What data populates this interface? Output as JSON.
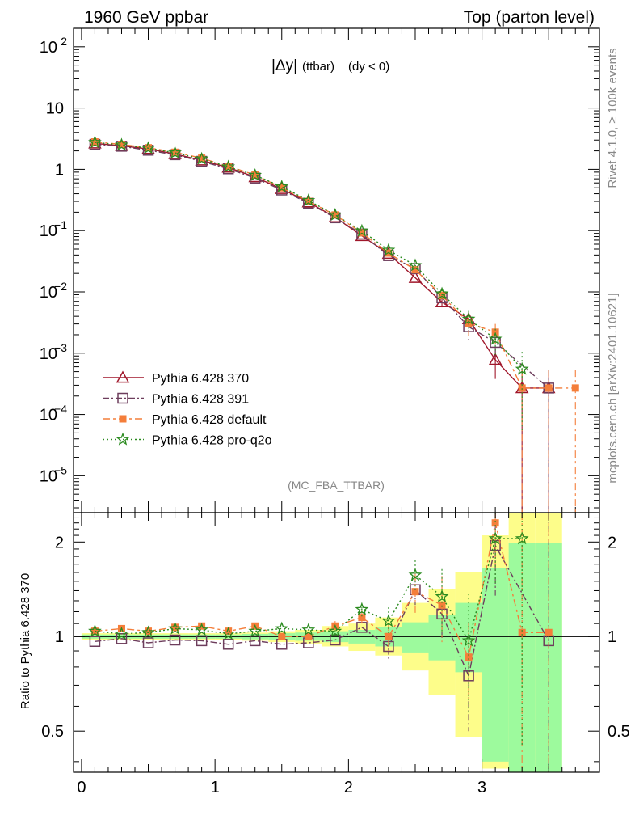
{
  "header": {
    "left": "1960 GeV ppbar",
    "right": "Top (parton level)"
  },
  "plot_label": {
    "var": "|Δy|",
    "sub": "(ttbar)",
    "cond": "(dy < 0)"
  },
  "analysis": "(MC_FBA_TTBAR)",
  "side": {
    "rivet": "Rivet 4.1.0, ≥ 100k events",
    "mcplots": "mcplots.cern.ch [arXiv:2401.10621]"
  },
  "ratio_ylabel": "Ratio to Pythia 6.428 370",
  "colors": {
    "p370": "#a0172b",
    "p391": "#6d3d5c",
    "pdef": "#f47e3a",
    "pq2o": "#2a8a1e",
    "band_inner": "#9dfa9d",
    "band_outer": "#fdfd8a"
  },
  "chart_data": [
    {
      "type": "line",
      "title": "|Δy| (ttbar) (dy < 0)",
      "xlim": [
        -0.06,
        3.88
      ],
      "ylim": [
        2.5e-06,
        200
      ],
      "yscale": "log",
      "yticks": [
        "10^-5",
        "10^-4",
        "10^-3",
        "10^-2",
        "10^-1",
        "1",
        "10",
        "10^2"
      ],
      "legend_position": "lower-left",
      "x": [
        0.1,
        0.3,
        0.5,
        0.7,
        0.9,
        1.1,
        1.3,
        1.5,
        1.7,
        1.9,
        2.1,
        2.3,
        2.5,
        2.7,
        2.9,
        3.1,
        3.3,
        3.5,
        3.7
      ],
      "series": [
        {
          "name": "Pythia 6.428 370",
          "key": "p370",
          "marker": "triangle",
          "values": [
            2.65,
            2.42,
            2.15,
            1.78,
            1.4,
            1.07,
            0.75,
            0.48,
            0.29,
            0.165,
            0.082,
            0.042,
            0.017,
            0.0068,
            0.0036,
            0.00078,
            0.00027,
            0.00027,
            null
          ],
          "err": [
            null,
            null,
            null,
            null,
            null,
            null,
            null,
            null,
            null,
            null,
            null,
            null,
            null,
            0.0012,
            0.001,
            0.0004,
            0.00027,
            0.00027,
            null
          ]
        },
        {
          "name": "Pythia 6.428 391",
          "key": "p391",
          "marker": "square",
          "values": [
            2.55,
            2.38,
            2.05,
            1.73,
            1.35,
            1.02,
            0.72,
            0.46,
            0.28,
            0.162,
            0.088,
            0.039,
            0.024,
            0.008,
            0.0027,
            0.0015,
            null,
            0.00027,
            null
          ],
          "err": [
            null,
            null,
            null,
            null,
            null,
            null,
            null,
            null,
            null,
            null,
            null,
            null,
            null,
            0.0015,
            0.0012,
            0.0006,
            null,
            0.00027,
            null
          ]
        },
        {
          "name": "Pythia 6.428 default",
          "key": "pdef",
          "marker": "fsquare",
          "values": [
            2.8,
            2.55,
            2.25,
            1.9,
            1.52,
            1.12,
            0.81,
            0.5,
            0.3,
            0.18,
            0.092,
            0.043,
            0.023,
            0.0087,
            0.0031,
            0.0022,
            0.00027,
            0.00027,
            0.00027
          ],
          "err": [
            null,
            null,
            null,
            null,
            null,
            null,
            null,
            null,
            null,
            null,
            null,
            null,
            null,
            0.0015,
            0.0012,
            0.0008,
            0.00027,
            0.00027,
            0.00027
          ]
        },
        {
          "name": "Pythia 6.428 pro-q2o",
          "key": "pq2o",
          "marker": "star",
          "values": [
            2.75,
            2.5,
            2.22,
            1.86,
            1.48,
            1.1,
            0.8,
            0.52,
            0.31,
            0.18,
            0.099,
            0.048,
            0.027,
            0.0093,
            0.0036,
            0.0017,
            0.00055,
            null,
            null
          ],
          "err": [
            null,
            null,
            null,
            null,
            null,
            null,
            null,
            null,
            null,
            null,
            null,
            null,
            null,
            0.0016,
            0.0013,
            0.0008,
            0.0005,
            null,
            null
          ]
        }
      ]
    },
    {
      "type": "line",
      "ylabel": "Ratio to Pythia 6.428 370",
      "xlim": [
        -0.06,
        3.88
      ],
      "ylim": [
        0.37,
        2.48
      ],
      "yscale": "log",
      "xticks": [
        0,
        1,
        2,
        3
      ],
      "yticks": [
        0.5,
        1,
        2
      ],
      "reference_line": 1,
      "bands": {
        "edges": [
          0,
          0.2,
          0.4,
          0.6,
          0.8,
          1.0,
          1.2,
          1.4,
          1.6,
          1.8,
          2.0,
          2.2,
          2.4,
          2.6,
          2.8,
          3.0,
          3.2,
          3.4,
          3.6
        ],
        "inner": [
          [
            0.985,
            1.015
          ],
          [
            0.985,
            1.015
          ],
          [
            0.985,
            1.015
          ],
          [
            0.985,
            1.015
          ],
          [
            0.985,
            1.015
          ],
          [
            0.985,
            1.015
          ],
          [
            0.98,
            1.02
          ],
          [
            0.975,
            1.025
          ],
          [
            0.97,
            1.03
          ],
          [
            0.96,
            1.04
          ],
          [
            0.95,
            1.05
          ],
          [
            0.93,
            1.07
          ],
          [
            0.89,
            1.11
          ],
          [
            0.84,
            1.17
          ],
          [
            0.77,
            1.28
          ],
          [
            0.4,
            1.65
          ],
          [
            0.37,
            1.98
          ],
          [
            0.37,
            1.98
          ]
        ],
        "outer": [
          [
            0.975,
            1.025
          ],
          [
            0.975,
            1.025
          ],
          [
            0.975,
            1.025
          ],
          [
            0.975,
            1.025
          ],
          [
            0.975,
            1.025
          ],
          [
            0.975,
            1.025
          ],
          [
            0.97,
            1.03
          ],
          [
            0.96,
            1.04
          ],
          [
            0.95,
            1.05
          ],
          [
            0.93,
            1.08
          ],
          [
            0.9,
            1.1
          ],
          [
            0.87,
            1.15
          ],
          [
            0.78,
            1.28
          ],
          [
            0.65,
            1.42
          ],
          [
            0.48,
            1.6
          ],
          [
            0.38,
            2.1
          ],
          [
            0.37,
            2.48
          ],
          [
            0.37,
            2.48
          ]
        ]
      },
      "x": [
        0.1,
        0.3,
        0.5,
        0.7,
        0.9,
        1.1,
        1.3,
        1.5,
        1.7,
        1.9,
        2.1,
        2.3,
        2.5,
        2.7,
        2.9,
        3.1,
        3.3,
        3.5
      ],
      "series": [
        {
          "name": "Pythia 6.428 391",
          "key": "p391",
          "marker": "square",
          "values": [
            0.965,
            0.985,
            0.955,
            0.975,
            0.97,
            0.945,
            0.97,
            0.945,
            0.955,
            0.975,
            1.07,
            0.93,
            1.41,
            1.18,
            0.75,
            1.95,
            null,
            0.97
          ],
          "err": [
            null,
            null,
            null,
            null,
            null,
            null,
            null,
            null,
            null,
            null,
            null,
            0.08,
            0.15,
            0.2,
            0.25,
            0.6,
            null,
            1.6
          ]
        },
        {
          "name": "Pythia 6.428 default",
          "key": "pdef",
          "marker": "fsquare",
          "values": [
            1.04,
            1.06,
            1.04,
            1.07,
            1.08,
            1.04,
            1.08,
            1.0,
            1.0,
            1.08,
            1.15,
            1.0,
            1.39,
            1.26,
            0.86,
            2.3,
            1.03,
            1.03
          ],
          "err": [
            null,
            null,
            null,
            null,
            null,
            null,
            null,
            null,
            0.03,
            0.04,
            0.06,
            0.1,
            0.2,
            0.3,
            0.25,
            0.6,
            1.6,
            1.6
          ]
        },
        {
          "name": "Pythia 6.428 pro-q2o",
          "key": "pq2o",
          "marker": "star",
          "values": [
            1.04,
            1.02,
            1.03,
            1.06,
            1.05,
            1.02,
            1.04,
            1.06,
            1.05,
            1.04,
            1.22,
            1.12,
            1.57,
            1.34,
            0.97,
            2.05,
            2.05,
            null
          ],
          "err": [
            null,
            null,
            null,
            null,
            null,
            null,
            null,
            null,
            null,
            0.04,
            0.06,
            0.12,
            0.18,
            0.3,
            0.4,
            0.6,
            1.6,
            null
          ]
        }
      ]
    }
  ]
}
